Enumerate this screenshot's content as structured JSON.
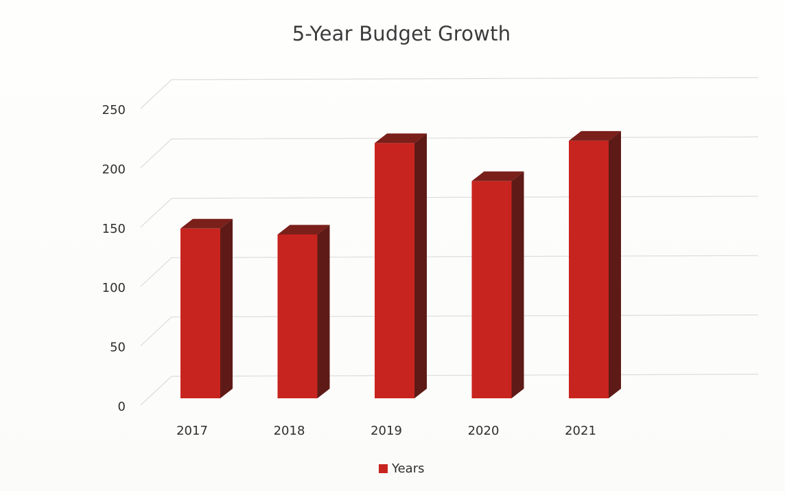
{
  "chart_data": {
    "type": "bar",
    "title": "5-Year Budget Growth",
    "xlabel": "",
    "ylabel": "",
    "categories": [
      "2017",
      "2018",
      "2019",
      "2020",
      "2021"
    ],
    "series": [
      {
        "name": "Years",
        "values": [
          150,
          145,
          222,
          190,
          224
        ]
      }
    ],
    "ylim": [
      0,
      250
    ],
    "yticks": [
      "0",
      "50",
      "100",
      "150",
      "200",
      "250"
    ],
    "grid": true,
    "legend_position": "bottom",
    "style": "3d-column"
  },
  "colors": {
    "bar_front": "#c8241f",
    "bar_side": "#5e1a16",
    "bar_top": "#7a1f1a",
    "gridline": "#dcdcdc"
  }
}
